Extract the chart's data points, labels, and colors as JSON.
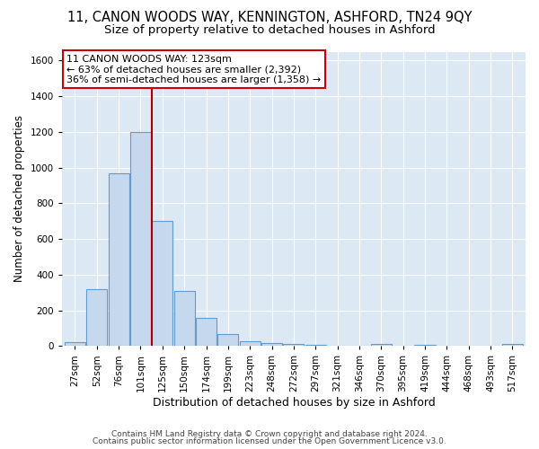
{
  "title1": "11, CANON WOODS WAY, KENNINGTON, ASHFORD, TN24 9QY",
  "title2": "Size of property relative to detached houses in Ashford",
  "xlabel": "Distribution of detached houses by size in Ashford",
  "ylabel": "Number of detached properties",
  "categories": [
    "27sqm",
    "52sqm",
    "76sqm",
    "101sqm",
    "125sqm",
    "150sqm",
    "174sqm",
    "199sqm",
    "223sqm",
    "248sqm",
    "272sqm",
    "297sqm",
    "321sqm",
    "346sqm",
    "370sqm",
    "395sqm",
    "419sqm",
    "444sqm",
    "468sqm",
    "493sqm",
    "517sqm"
  ],
  "values": [
    20,
    320,
    970,
    1200,
    700,
    310,
    155,
    65,
    25,
    15,
    10,
    5,
    0,
    0,
    10,
    0,
    5,
    0,
    0,
    0,
    10
  ],
  "bar_color": "#c5d8ee",
  "bar_edge_color": "#6699cc",
  "vline_color": "#aa0000",
  "annotation_line1": "11 CANON WOODS WAY: 123sqm",
  "annotation_line2": "← 63% of detached houses are smaller (2,392)",
  "annotation_line3": "36% of semi-detached houses are larger (1,358) →",
  "annotation_box_color": "white",
  "annotation_box_edge": "#cc0000",
  "ylim": [
    0,
    1650
  ],
  "yticks": [
    0,
    200,
    400,
    600,
    800,
    1000,
    1200,
    1400,
    1600
  ],
  "background_color": "#dde8f5",
  "footer1": "Contains HM Land Registry data © Crown copyright and database right 2024.",
  "footer2": "Contains public sector information licensed under the Open Government Licence v3.0.",
  "title1_fontsize": 10.5,
  "title2_fontsize": 9.5,
  "xlabel_fontsize": 9,
  "ylabel_fontsize": 8.5,
  "tick_fontsize": 7.5,
  "annot_fontsize": 8,
  "footer_fontsize": 6.5
}
